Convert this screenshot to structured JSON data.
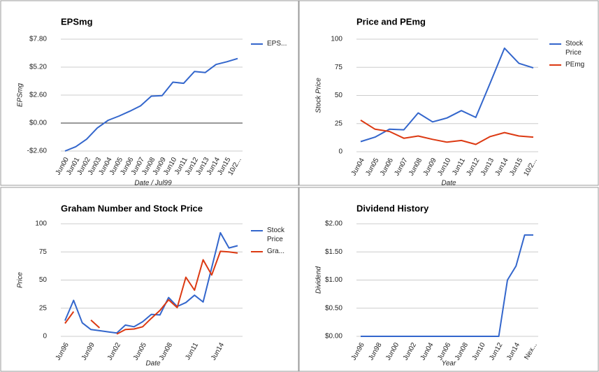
{
  "chart_data": [
    {
      "type": "line",
      "title": "EPSmg",
      "x_label": "Date / Jul99",
      "y_label": "EPSmg",
      "categories": [
        "Jun00",
        "Jun01",
        "Jun02",
        "Jun03",
        "Jun04",
        "Jun05",
        "Jun06",
        "Jun07",
        "Jun08",
        "Jun09",
        "Jun10",
        "Jun11",
        "Jun12",
        "Jun13",
        "Jun14",
        "Jun15",
        "10/2..."
      ],
      "series": [
        {
          "name": "EPS...",
          "color": "#3366cc",
          "values": [
            -2.6,
            -2.2,
            -1.5,
            -0.45,
            0.26,
            0.65,
            1.1,
            1.6,
            2.5,
            2.55,
            3.8,
            3.7,
            4.8,
            4.7,
            5.45,
            5.7,
            6.0
          ]
        }
      ],
      "ylim": [
        -2.6,
        7.8
      ],
      "yticks": [
        {
          "value": -2.6,
          "label": "-$2.60"
        },
        {
          "value": 0,
          "label": "$0.00"
        },
        {
          "value": 2.6,
          "label": "$2.60"
        },
        {
          "value": 5.2,
          "label": "$5.20"
        },
        {
          "value": 7.8,
          "label": "$7.80"
        }
      ],
      "grid": true,
      "zero_line": true,
      "legend": "right"
    },
    {
      "type": "line",
      "title": "Price and PEmg",
      "x_label": "Date",
      "y_label": "Stock Price",
      "categories": [
        "Jun04",
        "Jun05",
        "Jun06",
        "Jun07",
        "Jun08",
        "Jun09",
        "Jun10",
        "Jun11",
        "Jun12",
        "Jun13",
        "Jun14",
        "Jun15",
        "10/2..."
      ],
      "series": [
        {
          "name": "Stock Price",
          "color": "#3366cc",
          "values": [
            9,
            13,
            20,
            19.5,
            34.5,
            26.5,
            30,
            36.5,
            30.5,
            61,
            92,
            78.5,
            74.5
          ]
        },
        {
          "name": "PEmg",
          "color": "#dc3912",
          "values": [
            28,
            20,
            18,
            12,
            14,
            11,
            8.5,
            10,
            6.5,
            13.5,
            17,
            14,
            13
          ]
        }
      ],
      "ylim": [
        0,
        100
      ],
      "yticks": [
        0,
        25,
        50,
        75,
        100
      ],
      "grid": true,
      "legend": "right"
    },
    {
      "type": "line",
      "title": "Graham Number and Stock Price",
      "x_label": "Date",
      "y_label": "Price",
      "categories": [
        "Jun96",
        null,
        null,
        "Jun99",
        null,
        null,
        "Jun02",
        null,
        null,
        "Jun05",
        null,
        null,
        "Jun08",
        null,
        null,
        "Jun11",
        null,
        null,
        "Jun14",
        null,
        null
      ],
      "series": [
        {
          "name": "Stock Price",
          "color": "#3366cc",
          "values": [
            14,
            32,
            12,
            6,
            5,
            4,
            3,
            10,
            8.5,
            13,
            19.5,
            19,
            34.5,
            26.5,
            30,
            36.5,
            30.5,
            61,
            92,
            78.5,
            80.5
          ]
        },
        {
          "name": "Gra...",
          "color": "#dc3912",
          "values": [
            11.5,
            22,
            null,
            14.5,
            7.5,
            null,
            2,
            6,
            6.5,
            8.5,
            16,
            23,
            32.5,
            25.5,
            52.5,
            41,
            68,
            54.5,
            75.5,
            75,
            74
          ]
        }
      ],
      "ylim": [
        0,
        100
      ],
      "yticks": [
        0,
        25,
        50,
        75,
        100
      ],
      "grid": true,
      "legend": "right"
    },
    {
      "type": "line",
      "title": "Dividend History",
      "x_label": "Year",
      "y_label": "Dividend",
      "categories": [
        "Jun96",
        null,
        "Jun98",
        null,
        "Jun00",
        null,
        "Jun02",
        null,
        "Jun04",
        null,
        "Jun06",
        null,
        "Jun08",
        null,
        "Jun10",
        null,
        "Jun12",
        null,
        "Jun14",
        null,
        "Nex..."
      ],
      "series": [
        {
          "color": "#3366cc",
          "values": [
            0,
            0,
            0,
            0,
            0,
            0,
            0,
            0,
            0,
            0,
            0,
            0,
            0,
            0,
            0,
            0,
            0,
            1.0,
            1.25,
            1.8,
            1.8
          ]
        }
      ],
      "ylim": [
        0,
        2
      ],
      "yticks": [
        {
          "value": 0,
          "label": "$0.00"
        },
        {
          "value": 0.5,
          "label": "$0.50"
        },
        {
          "value": 1,
          "label": "$1.00"
        },
        {
          "value": 1.5,
          "label": "$1.50"
        },
        {
          "value": 2,
          "label": "$2.00"
        }
      ],
      "grid": true
    }
  ]
}
